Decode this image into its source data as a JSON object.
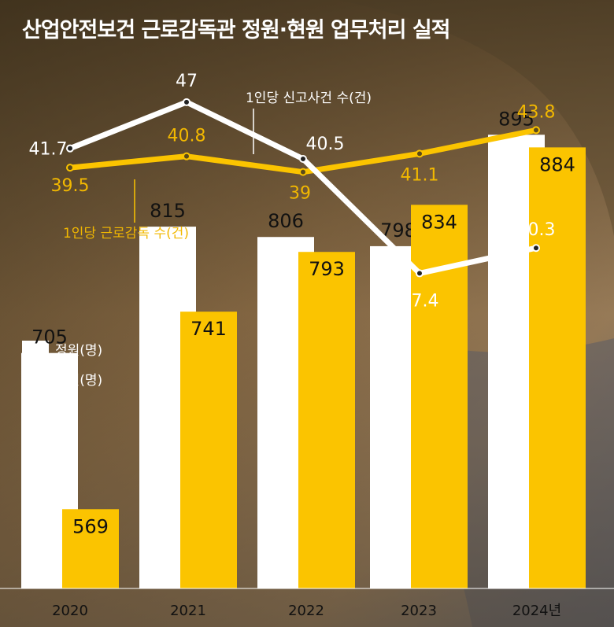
{
  "title": "산업안전보건 근로감독관 정원·현원 업무처리 실적",
  "colors": {
    "white_series": "#ffffff",
    "yellow_series": "#fbc400",
    "text_dark": "#111111",
    "yellow_text": "#f2b800"
  },
  "chart_data": [
    {
      "type": "line",
      "x": [
        "2020",
        "2021",
        "2022",
        "2023",
        "2024"
      ],
      "series": [
        {
          "name": "1인당 신고사건 수(건)",
          "color": "#ffffff",
          "values": [
            41.7,
            47.0,
            40.5,
            27.4,
            30.3
          ]
        },
        {
          "name": "1인당 근로감독 수(건)",
          "color": "#fbc400",
          "values": [
            39.5,
            40.8,
            39.0,
            41.1,
            43.8
          ]
        }
      ]
    },
    {
      "type": "bar",
      "categories": [
        "2020",
        "2021",
        "2022",
        "2023",
        "2024년"
      ],
      "series": [
        {
          "name": "정원(명)",
          "color": "#ffffff",
          "values": [
            705,
            815,
            806,
            798,
            895
          ]
        },
        {
          "name": "현원(명)",
          "color": "#fbc400",
          "values": [
            569,
            741,
            793,
            834,
            884
          ]
        }
      ],
      "ylim": [
        500,
        1000
      ]
    }
  ]
}
